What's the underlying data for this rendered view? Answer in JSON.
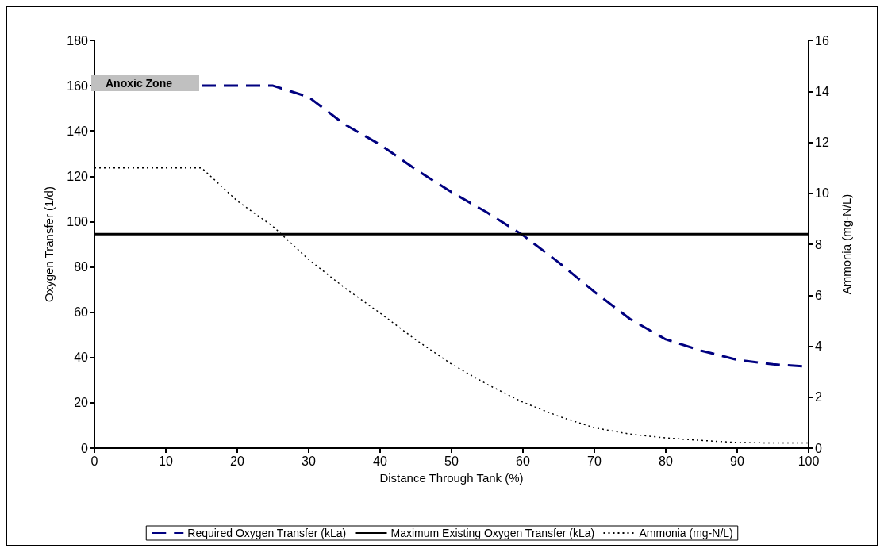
{
  "chart_data": {
    "type": "line",
    "xlabel": "Distance Through Tank (%)",
    "ylabel": "Oxygen Transfer (1/d)",
    "y2label": "Ammonia (mg-N/L)",
    "x": [
      0,
      5,
      10,
      15,
      20,
      25,
      30,
      35,
      40,
      45,
      50,
      55,
      60,
      65,
      70,
      75,
      80,
      85,
      90,
      95,
      100
    ],
    "series": [
      {
        "name": "Required Oxygen Transfer (kLa)",
        "color": "#000080",
        "line_style": "dashed",
        "values": [
          null,
          null,
          null,
          160,
          160,
          160,
          155,
          143,
          134,
          123,
          113,
          104,
          94,
          82,
          69,
          57,
          48,
          43,
          39,
          37,
          36
        ]
      },
      {
        "name": "Maximum Existing Oxygen Transfer (kLa)",
        "color": "#000000",
        "line_style": "solid",
        "values": [
          94.5,
          94.5,
          94.5,
          94.5,
          94.5,
          94.5,
          94.5,
          94.5,
          94.5,
          94.5,
          94.5,
          94.5,
          94.5,
          94.5,
          94.5,
          94.5,
          94.5,
          94.5,
          94.5,
          94.5,
          94.5
        ]
      },
      {
        "name": "Ammonia (mg-N/L)",
        "color": "#000000",
        "line_style": "dotted",
        "axis": "y2",
        "values": [
          11,
          11,
          11,
          11,
          9.7,
          8.7,
          7.4,
          6.3,
          5.3,
          4.25,
          3.3,
          2.5,
          1.8,
          1.25,
          0.8,
          0.55,
          0.4,
          0.3,
          0.22,
          0.2,
          0.2
        ]
      }
    ],
    "xlim": [
      0,
      100
    ],
    "xticks": [
      0,
      10,
      20,
      30,
      40,
      50,
      60,
      70,
      80,
      90,
      100
    ],
    "ylim": [
      0,
      180
    ],
    "yticks": [
      0,
      20,
      40,
      60,
      80,
      100,
      120,
      140,
      160,
      180
    ],
    "y2lim": [
      0,
      16
    ],
    "y2ticks": [
      0,
      2,
      4,
      6,
      8,
      10,
      12,
      14,
      16
    ],
    "annotations": [
      "Anoxic Zone"
    ],
    "grid": false,
    "legend": "bottom",
    "marker": "none"
  }
}
